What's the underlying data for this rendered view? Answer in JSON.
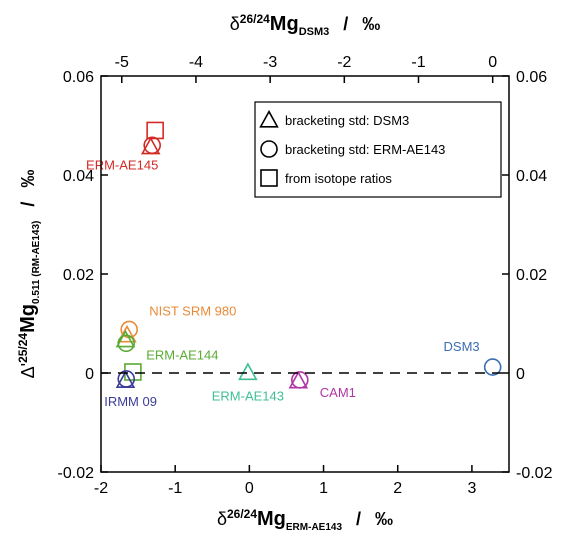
{
  "chart_data": {
    "type": "scatter",
    "x_axis": {
      "main": "δ",
      "sup": "26/24",
      "base": "Mg",
      "sub": "ERM-AE143",
      "slash": "/",
      "unit": "‰",
      "range": [
        -2,
        3.5
      ],
      "ticks": [
        -2,
        -1,
        0,
        1,
        2,
        3
      ],
      "tick_labels": [
        "-2",
        "-1",
        "0",
        "1",
        "2",
        "3"
      ]
    },
    "x2_axis": {
      "main": "δ",
      "sup": "26/24",
      "base": "Mg",
      "sub": "DSM3",
      "slash": "/",
      "unit": "‰",
      "tick_labels": [
        "-5",
        "-4",
        "-3",
        "-2",
        "-1",
        "0"
      ],
      "tick_values": [
        -5,
        -4,
        -3,
        -2,
        -1,
        0
      ]
    },
    "y_axis": {
      "main": "Δ'",
      "sup": "25/24",
      "base": "Mg",
      "sub": "0.511 (RM-AE143)",
      "slash": "/",
      "unit": "‰",
      "range": [
        -0.02,
        0.06
      ],
      "ticks": [
        -0.02,
        0,
        0.02,
        0.04,
        0.06
      ],
      "tick_labels": [
        "-0.02",
        "0",
        "0.02",
        "0.04",
        "0.06"
      ]
    },
    "zero_line": true,
    "grid": false,
    "legend_position": "top-right",
    "series": [
      {
        "name": "bracketing std: DSM3",
        "marker": "triangle"
      },
      {
        "name": "bracketing std: ERM-AE143",
        "marker": "circle"
      },
      {
        "name": "from isotope ratios",
        "marker": "square"
      }
    ],
    "samples": [
      {
        "label": "ERM-AE145",
        "color": "#d42a25",
        "triangle": [
          -1.33,
          0.0455
        ],
        "circle": [
          -1.31,
          0.046
        ],
        "square": [
          -1.27,
          0.049
        ]
      },
      {
        "label": "NIST SRM 980",
        "color": "#e88b38",
        "triangle": [
          -1.65,
          0.0075
        ],
        "circle": [
          -1.62,
          0.0088
        ]
      },
      {
        "label": "ERM-AE144",
        "color": "#5aab33",
        "triangle": [
          -1.67,
          0.0065
        ],
        "circle": [
          -1.66,
          0.006
        ],
        "square": [
          -1.57,
          0.0002
        ]
      },
      {
        "label": "ERM-AE143",
        "color": "#3fbf95",
        "triangle": [
          -0.02,
          -0.0001
        ]
      },
      {
        "label": "IRMM 09",
        "color": "#3b3c9a",
        "triangle": [
          -1.67,
          -0.0017
        ],
        "circle": [
          -1.66,
          -0.0012
        ]
      },
      {
        "label": "CAM1",
        "color": "#b036a3",
        "triangle": [
          0.66,
          -0.0018
        ],
        "circle": [
          0.68,
          -0.0014
        ]
      },
      {
        "label": "DSM3",
        "color": "#3a6db5",
        "circle": [
          3.28,
          0.0012
        ]
      }
    ]
  }
}
